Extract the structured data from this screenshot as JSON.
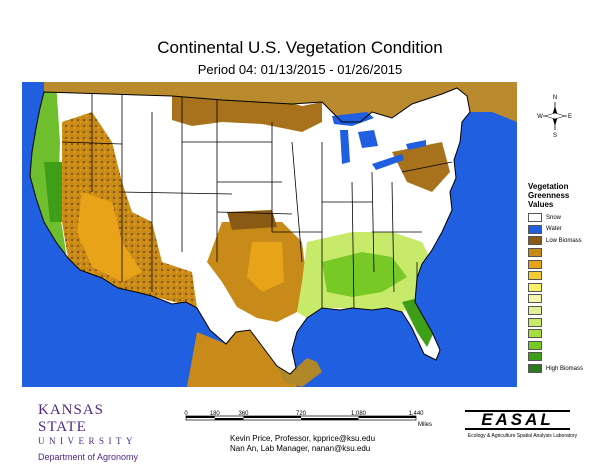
{
  "title": "Continental U.S. Vegetation Condition",
  "subtitle": "Period 04: 01/13/2015 - 01/26/2015",
  "compass": {
    "n": "N",
    "s": "S",
    "e": "E",
    "w": "W"
  },
  "legend": {
    "title_lines": [
      "Vegetation",
      "Greenness",
      "Values"
    ],
    "items": [
      {
        "label": "Snow",
        "color": "#ffffff"
      },
      {
        "label": "Water",
        "color": "#1f5fe0"
      },
      {
        "label": "Low Biomass",
        "color": "#8a5a14"
      },
      {
        "label": "",
        "color": "#c88a18"
      },
      {
        "label": "",
        "color": "#e8a318"
      },
      {
        "label": "",
        "color": "#f3cc34"
      },
      {
        "label": "",
        "color": "#fbf06a"
      },
      {
        "label": "",
        "color": "#f5f5b0"
      },
      {
        "label": "",
        "color": "#e2f09a"
      },
      {
        "label": "",
        "color": "#c8ea6a"
      },
      {
        "label": "",
        "color": "#a6de42"
      },
      {
        "label": "",
        "color": "#78c826"
      },
      {
        "label": "",
        "color": "#3e9e18"
      },
      {
        "label": "High Biomass",
        "color": "#2f7a20"
      }
    ]
  },
  "ksu": {
    "name": "KANSAS STATE",
    "univ": "UNIVERSITY",
    "dept": "Department of Agronomy"
  },
  "scale": {
    "ticks": [
      "0",
      "180",
      "360",
      "720",
      "1,080",
      "1,440"
    ],
    "tick_values": [
      0,
      180,
      360,
      720,
      1080,
      1440
    ],
    "unit": "Miles"
  },
  "contacts": [
    "Kevin Price, Professor, kpprice@ksu.edu",
    "Nan An, Lab Manager, nanan@ksu.edu"
  ],
  "easal": {
    "name": "EASAL",
    "subtitle": "Ecology & Agriculture Spatial Analysis Laboratory"
  },
  "colors": {
    "ocean": "#1f5fe0",
    "snow": "#ffffff",
    "low_biomass": "#8a5a14",
    "high_biomass": "#2f7a20"
  }
}
